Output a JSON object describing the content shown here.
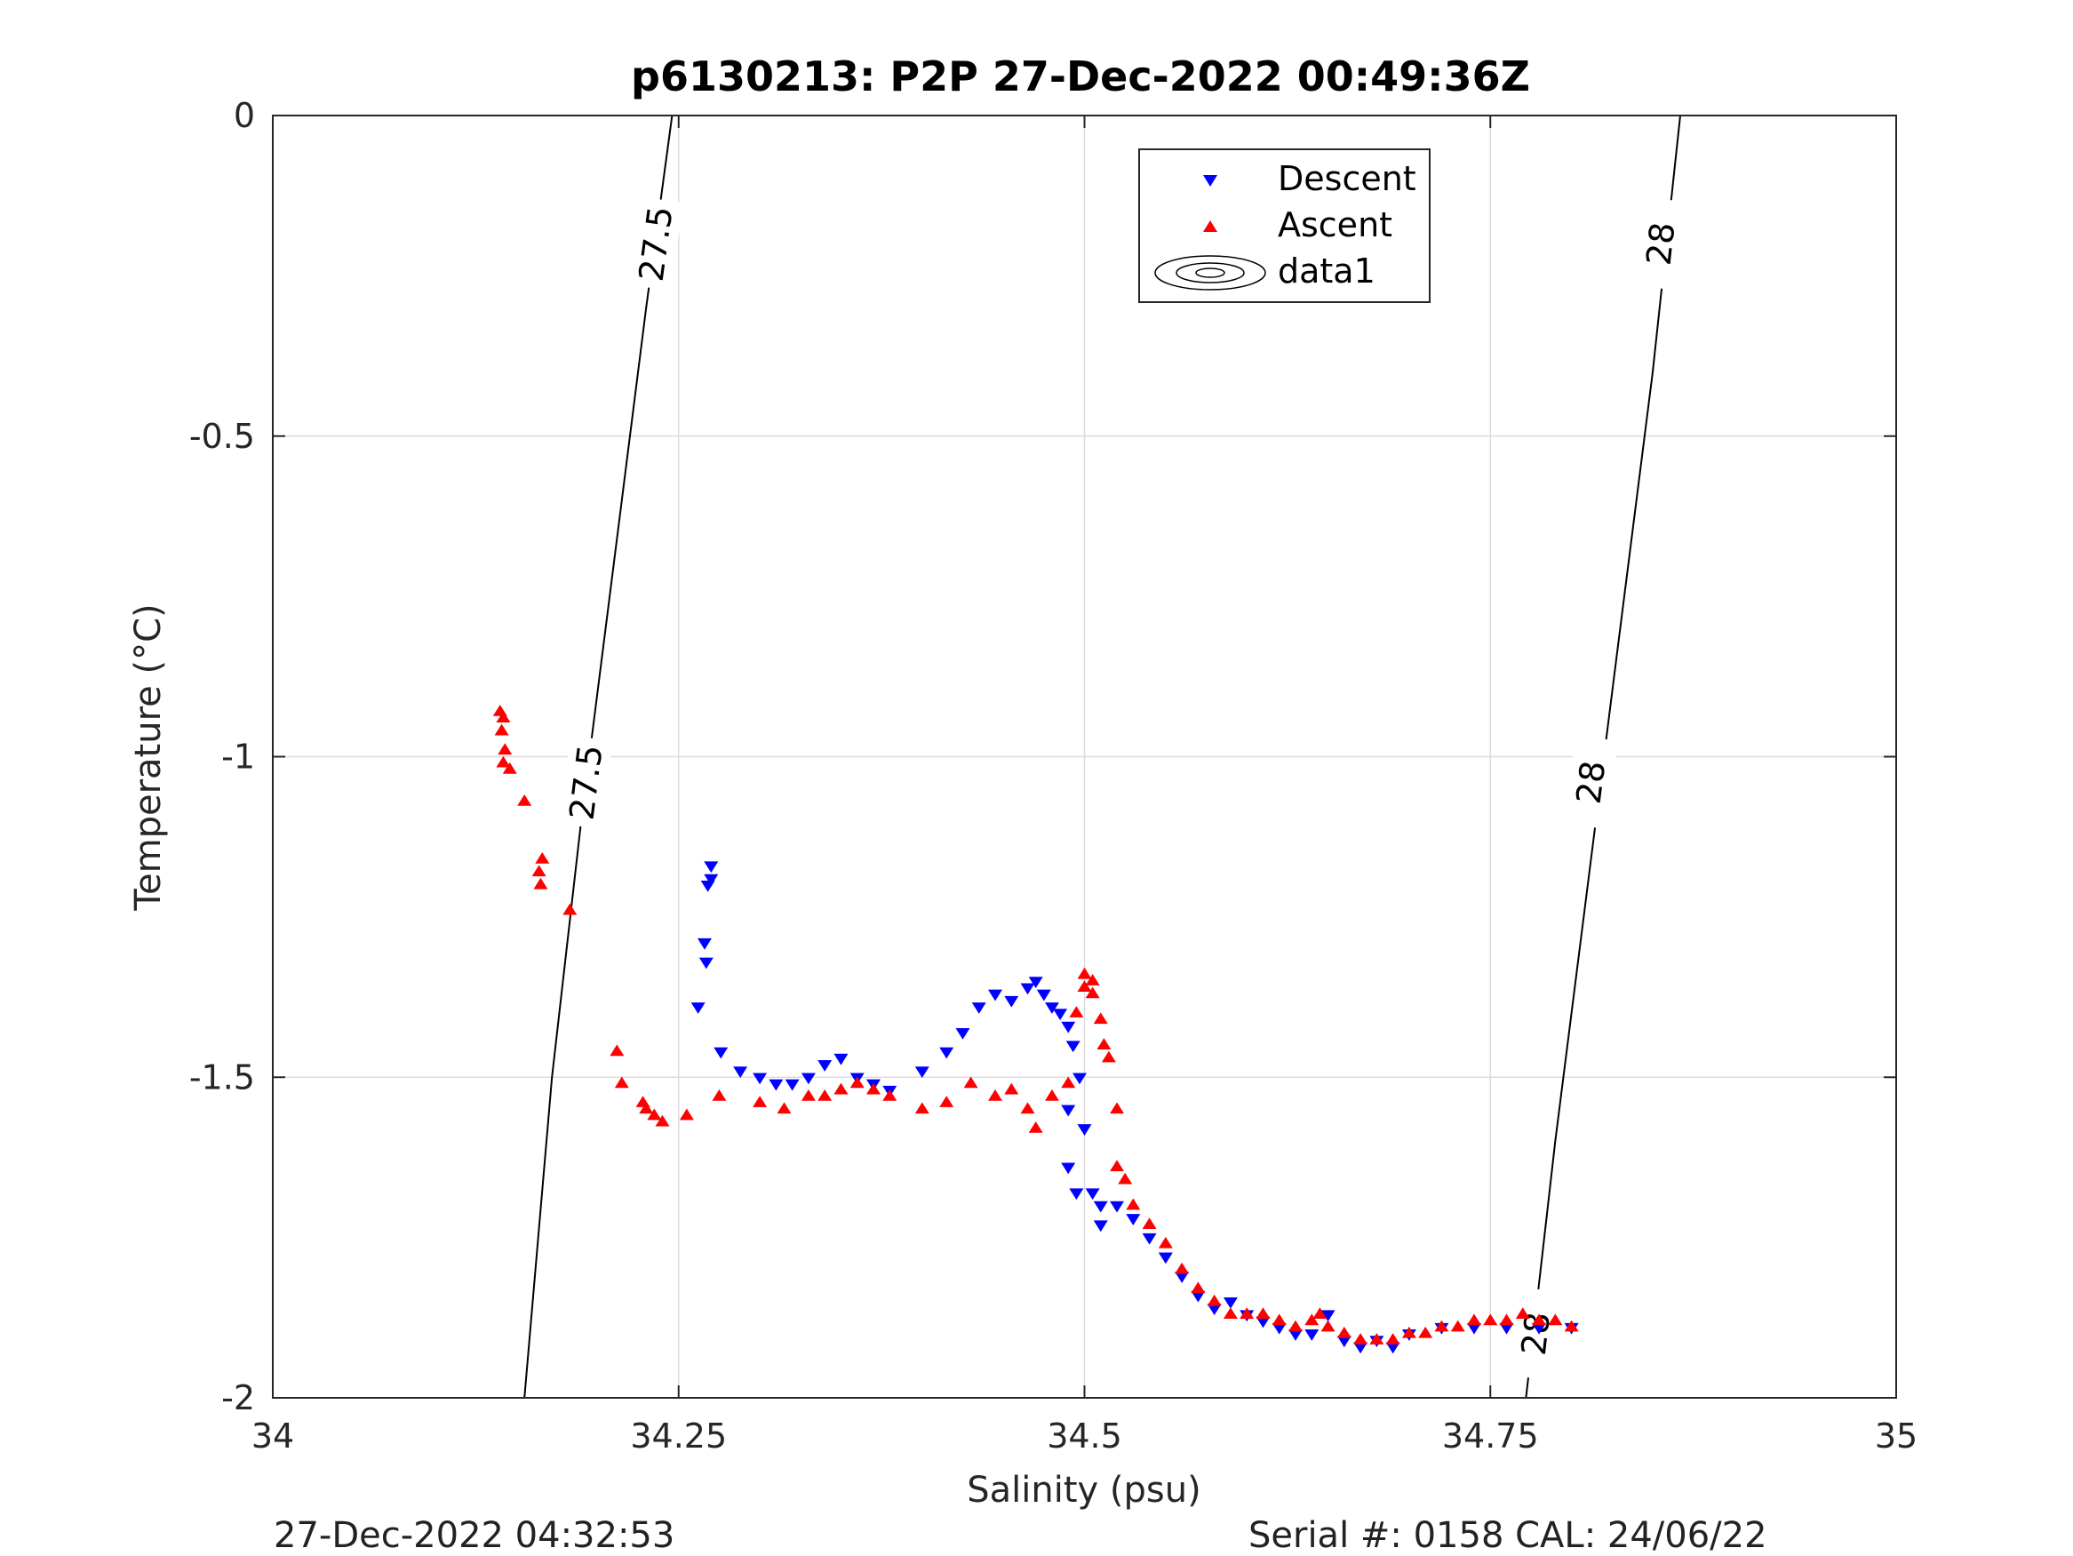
{
  "chart_data": {
    "type": "scatter",
    "title": "p6130213: P2P 27-Dec-2022 00:49:36Z",
    "xlabel": "Salinity (psu)",
    "ylabel": "Temperature (°C)",
    "xlim": [
      34,
      35
    ],
    "ylim": [
      -2,
      0
    ],
    "xticks": [
      "34",
      "34.25",
      "34.5",
      "34.75",
      "35"
    ],
    "yticks": [
      "0",
      "-0.5",
      "-1",
      "-1.5",
      "-2"
    ],
    "grid": true,
    "legend_position": "top-right",
    "legend": [
      "Descent",
      "Ascent",
      "data1"
    ],
    "contours": [
      {
        "label": "27.5",
        "points": [
          [
            34.246,
            0
          ],
          [
            34.23,
            -0.3
          ],
          [
            34.21,
            -0.7
          ],
          [
            34.19,
            -1.1
          ],
          [
            34.172,
            -1.5
          ],
          [
            34.155,
            -2
          ]
        ],
        "label_positions": [
          [
            34.236,
            -0.2
          ],
          [
            34.193,
            -1.04
          ]
        ]
      },
      {
        "label": "28",
        "points": [
          [
            34.867,
            0
          ],
          [
            34.85,
            -0.4
          ],
          [
            34.83,
            -0.8
          ],
          [
            34.81,
            -1.2
          ],
          [
            34.79,
            -1.6
          ],
          [
            34.772,
            -2
          ]
        ],
        "label_positions": [
          [
            34.855,
            -0.2
          ],
          [
            34.812,
            -1.04
          ],
          [
            34.778,
            -1.9
          ]
        ]
      }
    ],
    "series": [
      {
        "name": "Descent",
        "color": "#0000ff",
        "marker": "triangle-down",
        "points": [
          [
            34.27,
            -1.17
          ],
          [
            34.27,
            -1.19
          ],
          [
            34.268,
            -1.2
          ],
          [
            34.266,
            -1.29
          ],
          [
            34.267,
            -1.32
          ],
          [
            34.262,
            -1.39
          ],
          [
            34.276,
            -1.46
          ],
          [
            34.288,
            -1.49
          ],
          [
            34.3,
            -1.5
          ],
          [
            34.31,
            -1.51
          ],
          [
            34.32,
            -1.51
          ],
          [
            34.33,
            -1.5
          ],
          [
            34.34,
            -1.48
          ],
          [
            34.35,
            -1.47
          ],
          [
            34.36,
            -1.5
          ],
          [
            34.37,
            -1.51
          ],
          [
            34.38,
            -1.52
          ],
          [
            34.4,
            -1.49
          ],
          [
            34.415,
            -1.46
          ],
          [
            34.425,
            -1.43
          ],
          [
            34.435,
            -1.39
          ],
          [
            34.445,
            -1.37
          ],
          [
            34.455,
            -1.38
          ],
          [
            34.465,
            -1.36
          ],
          [
            34.47,
            -1.35
          ],
          [
            34.475,
            -1.37
          ],
          [
            34.48,
            -1.39
          ],
          [
            34.485,
            -1.4
          ],
          [
            34.49,
            -1.42
          ],
          [
            34.493,
            -1.45
          ],
          [
            34.497,
            -1.5
          ],
          [
            34.49,
            -1.55
          ],
          [
            34.5,
            -1.58
          ],
          [
            34.49,
            -1.64
          ],
          [
            34.495,
            -1.68
          ],
          [
            34.505,
            -1.68
          ],
          [
            34.51,
            -1.7
          ],
          [
            34.51,
            -1.73
          ],
          [
            34.52,
            -1.7
          ],
          [
            34.53,
            -1.72
          ],
          [
            34.54,
            -1.75
          ],
          [
            34.55,
            -1.78
          ],
          [
            34.56,
            -1.81
          ],
          [
            34.57,
            -1.84
          ],
          [
            34.58,
            -1.86
          ],
          [
            34.59,
            -1.85
          ],
          [
            34.6,
            -1.87
          ],
          [
            34.61,
            -1.88
          ],
          [
            34.62,
            -1.89
          ],
          [
            34.63,
            -1.9
          ],
          [
            34.64,
            -1.9
          ],
          [
            34.65,
            -1.87
          ],
          [
            34.66,
            -1.91
          ],
          [
            34.67,
            -1.92
          ],
          [
            34.68,
            -1.91
          ],
          [
            34.69,
            -1.92
          ],
          [
            34.7,
            -1.9
          ],
          [
            34.72,
            -1.89
          ],
          [
            34.74,
            -1.89
          ],
          [
            34.76,
            -1.89
          ],
          [
            34.78,
            -1.89
          ],
          [
            34.8,
            -1.89
          ]
        ]
      },
      {
        "name": "Ascent",
        "color": "#ff0000",
        "marker": "triangle-up",
        "points": [
          [
            34.14,
            -0.93
          ],
          [
            34.142,
            -0.94
          ],
          [
            34.141,
            -0.96
          ],
          [
            34.143,
            -0.99
          ],
          [
            34.142,
            -1.01
          ],
          [
            34.146,
            -1.02
          ],
          [
            34.155,
            -1.07
          ],
          [
            34.166,
            -1.16
          ],
          [
            34.164,
            -1.18
          ],
          [
            34.165,
            -1.2
          ],
          [
            34.183,
            -1.24
          ],
          [
            34.212,
            -1.46
          ],
          [
            34.215,
            -1.51
          ],
          [
            34.228,
            -1.54
          ],
          [
            34.23,
            -1.55
          ],
          [
            34.235,
            -1.56
          ],
          [
            34.24,
            -1.57
          ],
          [
            34.255,
            -1.56
          ],
          [
            34.275,
            -1.53
          ],
          [
            34.3,
            -1.54
          ],
          [
            34.315,
            -1.55
          ],
          [
            34.33,
            -1.53
          ],
          [
            34.34,
            -1.53
          ],
          [
            34.35,
            -1.52
          ],
          [
            34.36,
            -1.51
          ],
          [
            34.37,
            -1.52
          ],
          [
            34.38,
            -1.53
          ],
          [
            34.4,
            -1.55
          ],
          [
            34.415,
            -1.54
          ],
          [
            34.43,
            -1.51
          ],
          [
            34.445,
            -1.53
          ],
          [
            34.455,
            -1.52
          ],
          [
            34.465,
            -1.55
          ],
          [
            34.47,
            -1.58
          ],
          [
            34.48,
            -1.53
          ],
          [
            34.49,
            -1.51
          ],
          [
            34.495,
            -1.4
          ],
          [
            34.5,
            -1.36
          ],
          [
            34.5,
            -1.34
          ],
          [
            34.505,
            -1.35
          ],
          [
            34.505,
            -1.37
          ],
          [
            34.51,
            -1.41
          ],
          [
            34.512,
            -1.45
          ],
          [
            34.515,
            -1.47
          ],
          [
            34.52,
            -1.55
          ],
          [
            34.52,
            -1.64
          ],
          [
            34.525,
            -1.66
          ],
          [
            34.53,
            -1.7
          ],
          [
            34.54,
            -1.73
          ],
          [
            34.55,
            -1.76
          ],
          [
            34.56,
            -1.8
          ],
          [
            34.57,
            -1.83
          ],
          [
            34.58,
            -1.85
          ],
          [
            34.59,
            -1.87
          ],
          [
            34.6,
            -1.87
          ],
          [
            34.61,
            -1.87
          ],
          [
            34.62,
            -1.88
          ],
          [
            34.63,
            -1.89
          ],
          [
            34.64,
            -1.88
          ],
          [
            34.645,
            -1.87
          ],
          [
            34.65,
            -1.89
          ],
          [
            34.66,
            -1.9
          ],
          [
            34.67,
            -1.91
          ],
          [
            34.68,
            -1.91
          ],
          [
            34.69,
            -1.91
          ],
          [
            34.7,
            -1.9
          ],
          [
            34.71,
            -1.9
          ],
          [
            34.72,
            -1.89
          ],
          [
            34.73,
            -1.89
          ],
          [
            34.74,
            -1.88
          ],
          [
            34.75,
            -1.88
          ],
          [
            34.76,
            -1.88
          ],
          [
            34.77,
            -1.87
          ],
          [
            34.78,
            -1.88
          ],
          [
            34.79,
            -1.88
          ],
          [
            34.8,
            -1.89
          ]
        ]
      }
    ]
  },
  "footer": {
    "left": "27-Dec-2022 04:32:53",
    "right": "Serial #: 0158  CAL: 24/06/22"
  }
}
